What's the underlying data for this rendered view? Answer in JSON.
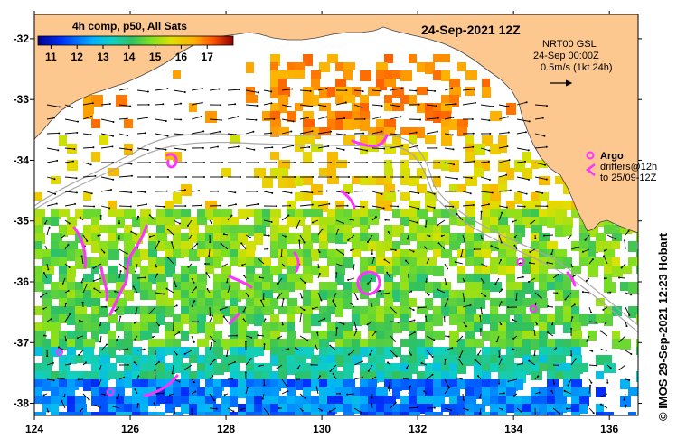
{
  "title": "24-Sep-2021 12Z",
  "colorbar": {
    "label": "4h comp, p50, All Sats",
    "min": 10.5,
    "max": 18,
    "ticks": [
      "11",
      "12",
      "13",
      "14",
      "15",
      "16",
      "17"
    ]
  },
  "current_key": {
    "line1": "NRT00 GSL",
    "line2": "24-Sep 00:00Z",
    "line3": "0.5m/s (1kt 24h)"
  },
  "argo_legend": {
    "label": "Argo",
    "drifters_line1": "drifters@12h",
    "drifters_line2": "to 25/09-12Z",
    "color": "#ff33ff"
  },
  "credit": "© IMOS 29-Sep-2021 12:23 Hobart",
  "axes": {
    "x_ticks": [
      "124",
      "126",
      "128",
      "130",
      "132",
      "134",
      "136"
    ],
    "y_ticks": [
      "-32",
      "-33",
      "-34",
      "-35",
      "-36",
      "-37",
      "-38"
    ]
  },
  "colors": {
    "land": "#fdc790",
    "ocean": "#ffffff",
    "argo": "#ff33ff"
  }
}
